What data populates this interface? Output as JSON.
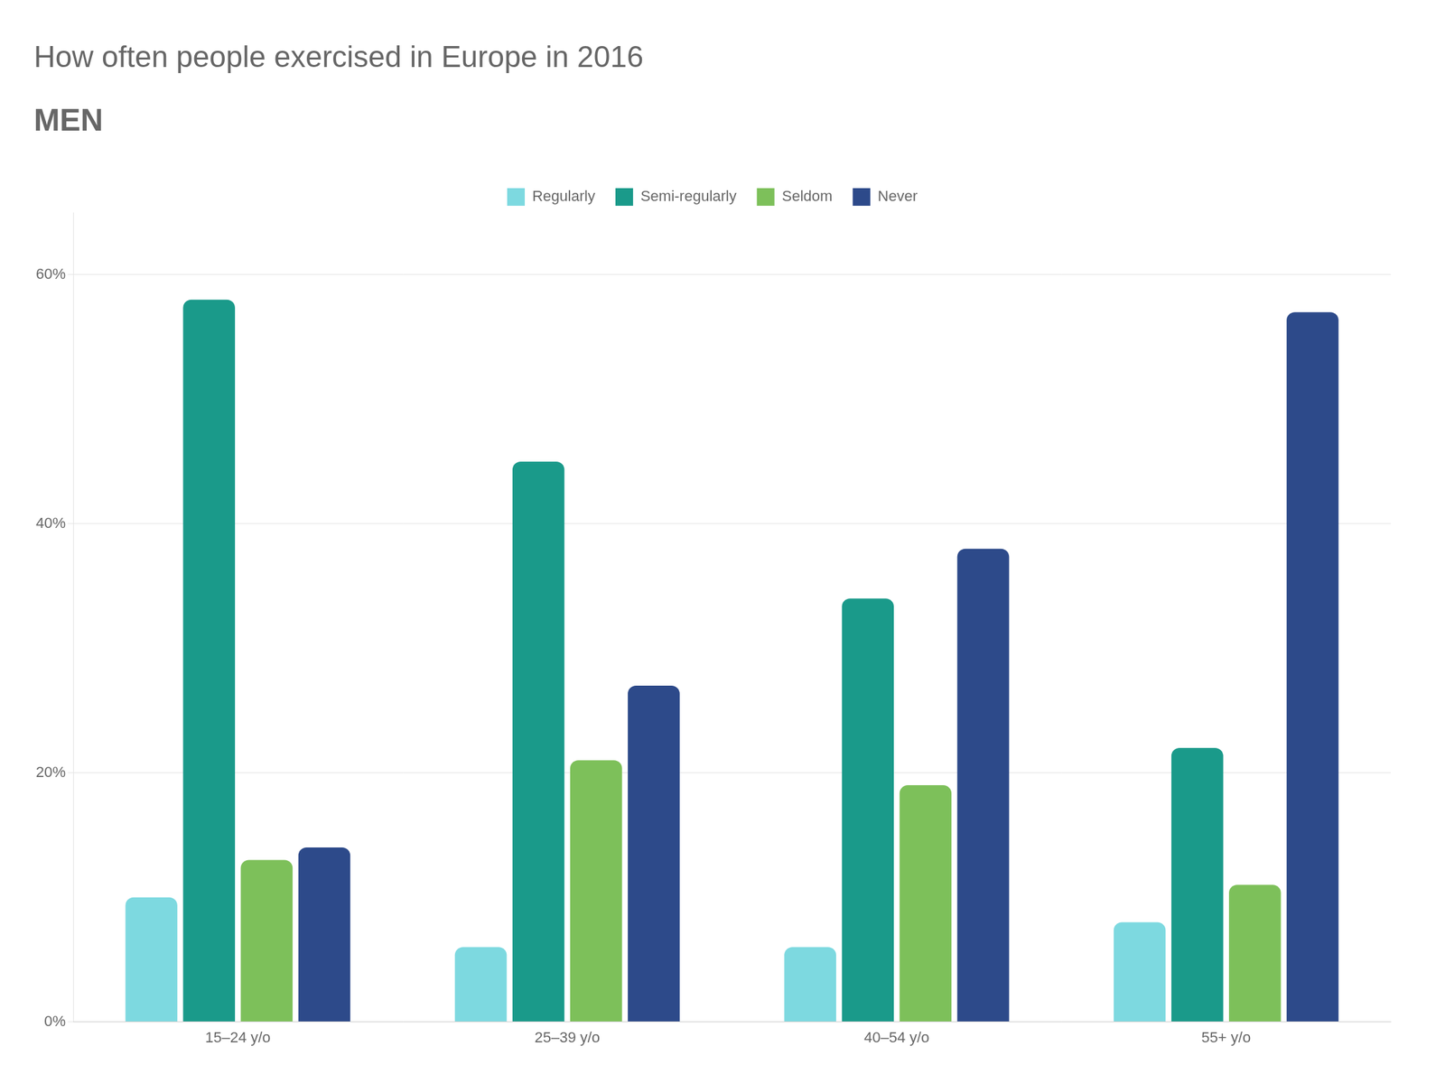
{
  "chart_data": {
    "type": "bar",
    "title": "How often people exercised in Europe in 2016",
    "subtitle": "MEN",
    "categories": [
      "15–24 y/o",
      "25–39 y/o",
      "40–54 y/o",
      "55+ y/o"
    ],
    "series": [
      {
        "name": "Regularly",
        "color": "#7dd9e0",
        "values": [
          10,
          6,
          6,
          8
        ]
      },
      {
        "name": "Semi-regularly",
        "color": "#1a9a8a",
        "values": [
          58,
          45,
          34,
          22
        ]
      },
      {
        "name": "Seldom",
        "color": "#7dc05a",
        "values": [
          13,
          21,
          19,
          11
        ]
      },
      {
        "name": "Never",
        "color": "#2d4a8a",
        "values": [
          14,
          27,
          38,
          57
        ]
      }
    ],
    "ylim": [
      0,
      65
    ],
    "yticks": [
      {
        "value": 0,
        "label": "0%"
      },
      {
        "value": 20,
        "label": "20%"
      },
      {
        "value": 40,
        "label": "40%"
      },
      {
        "value": 60,
        "label": "60%"
      }
    ],
    "grid": "y",
    "legend": "top"
  }
}
